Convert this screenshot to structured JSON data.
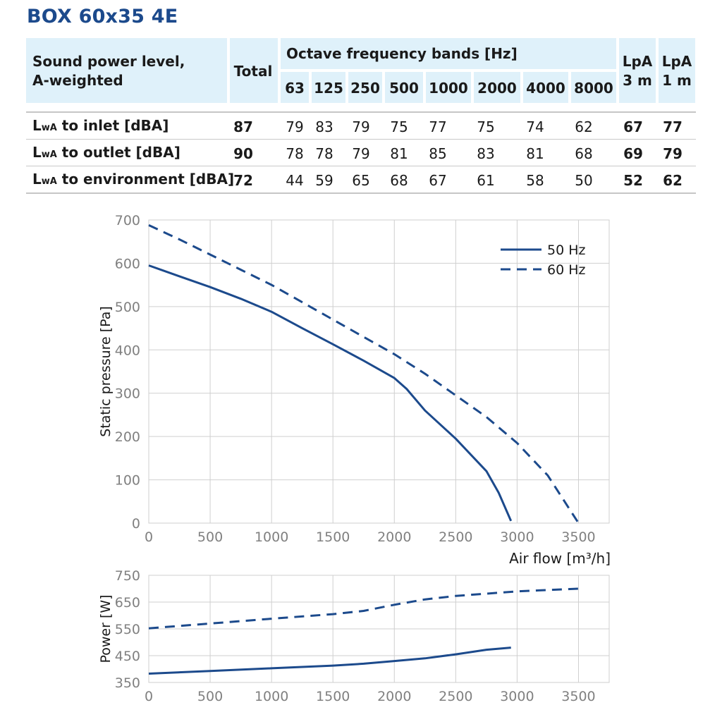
{
  "title": "BOX 60x35 4E",
  "table": {
    "header_label_line1": "Sound power level,",
    "header_label_line2": "A-weighted",
    "header_total": "Total",
    "header_octave": "Octave frequency bands [Hz]",
    "bands": [
      "63",
      "125",
      "250",
      "500",
      "1000",
      "2000",
      "4000",
      "8000"
    ],
    "header_lpa3_line1": "LpA",
    "header_lpa3_line2": "3 m",
    "header_lpa1_line1": "LpA",
    "header_lpa1_line2": "1 m",
    "rows": [
      {
        "label_prefix": "L",
        "label_sub": "wA",
        "label_rest": " to inlet [dBA]",
        "total": "87",
        "values": [
          "79",
          "83",
          "79",
          "75",
          "77",
          "75",
          "74",
          "62"
        ],
        "lpa3": "67",
        "lpa1": "77"
      },
      {
        "label_prefix": "L",
        "label_sub": "wA",
        "label_rest": " to outlet [dBA]",
        "total": "90",
        "values": [
          "78",
          "78",
          "79",
          "81",
          "85",
          "83",
          "81",
          "68"
        ],
        "lpa3": "69",
        "lpa1": "79"
      },
      {
        "label_prefix": "L",
        "label_sub": "wA",
        "label_rest": " to environment [dBA]",
        "total": "72",
        "values": [
          "44",
          "59",
          "65",
          "68",
          "67",
          "61",
          "58",
          "50"
        ],
        "lpa3": "52",
        "lpa1": "62"
      }
    ]
  },
  "chart_data": [
    {
      "type": "line",
      "title": "",
      "xlabel": "Air flow [m³/h]",
      "ylabel": "Static pressure [Pa]",
      "xlim": [
        0,
        3750
      ],
      "ylim": [
        0,
        700
      ],
      "xticks": [
        0,
        500,
        1000,
        1500,
        2000,
        2500,
        3000,
        3500
      ],
      "yticks": [
        0,
        100,
        200,
        300,
        400,
        500,
        600,
        700
      ],
      "grid": true,
      "legend_position": "top-right",
      "line_color": "#1c4a8c",
      "series": [
        {
          "name": "50 Hz",
          "style": "solid",
          "x": [
            0,
            250,
            500,
            750,
            1000,
            1250,
            1500,
            1750,
            2000,
            2100,
            2250,
            2500,
            2750,
            2850,
            2950
          ],
          "y": [
            595,
            570,
            545,
            518,
            488,
            450,
            413,
            375,
            335,
            310,
            260,
            195,
            120,
            70,
            5
          ]
        },
        {
          "name": "60 Hz",
          "style": "dashed",
          "x": [
            0,
            250,
            500,
            750,
            1000,
            1250,
            1500,
            1750,
            2000,
            2250,
            2500,
            2750,
            3000,
            3250,
            3500
          ],
          "y": [
            688,
            655,
            620,
            585,
            550,
            510,
            470,
            430,
            390,
            345,
            295,
            245,
            185,
            110,
            0
          ]
        }
      ]
    },
    {
      "type": "line",
      "title": "",
      "xlabel": "",
      "ylabel": "Power [W]",
      "xlim": [
        0,
        3750
      ],
      "ylim": [
        350,
        750
      ],
      "xticks": [
        0,
        500,
        1000,
        1500,
        2000,
        2500,
        3000,
        3500
      ],
      "yticks": [
        350,
        450,
        550,
        650,
        750
      ],
      "grid": true,
      "line_color": "#1c4a8c",
      "series": [
        {
          "name": "50 Hz",
          "style": "solid",
          "x": [
            0,
            500,
            1000,
            1500,
            1750,
            2000,
            2250,
            2500,
            2750,
            2950
          ],
          "y": [
            383,
            393,
            403,
            413,
            420,
            430,
            440,
            455,
            472,
            480
          ]
        },
        {
          "name": "60 Hz",
          "style": "dashed",
          "x": [
            0,
            500,
            1000,
            1500,
            1750,
            2000,
            2250,
            2500,
            3000,
            3500
          ],
          "y": [
            552,
            570,
            588,
            605,
            617,
            640,
            660,
            673,
            690,
            700
          ]
        }
      ]
    }
  ]
}
